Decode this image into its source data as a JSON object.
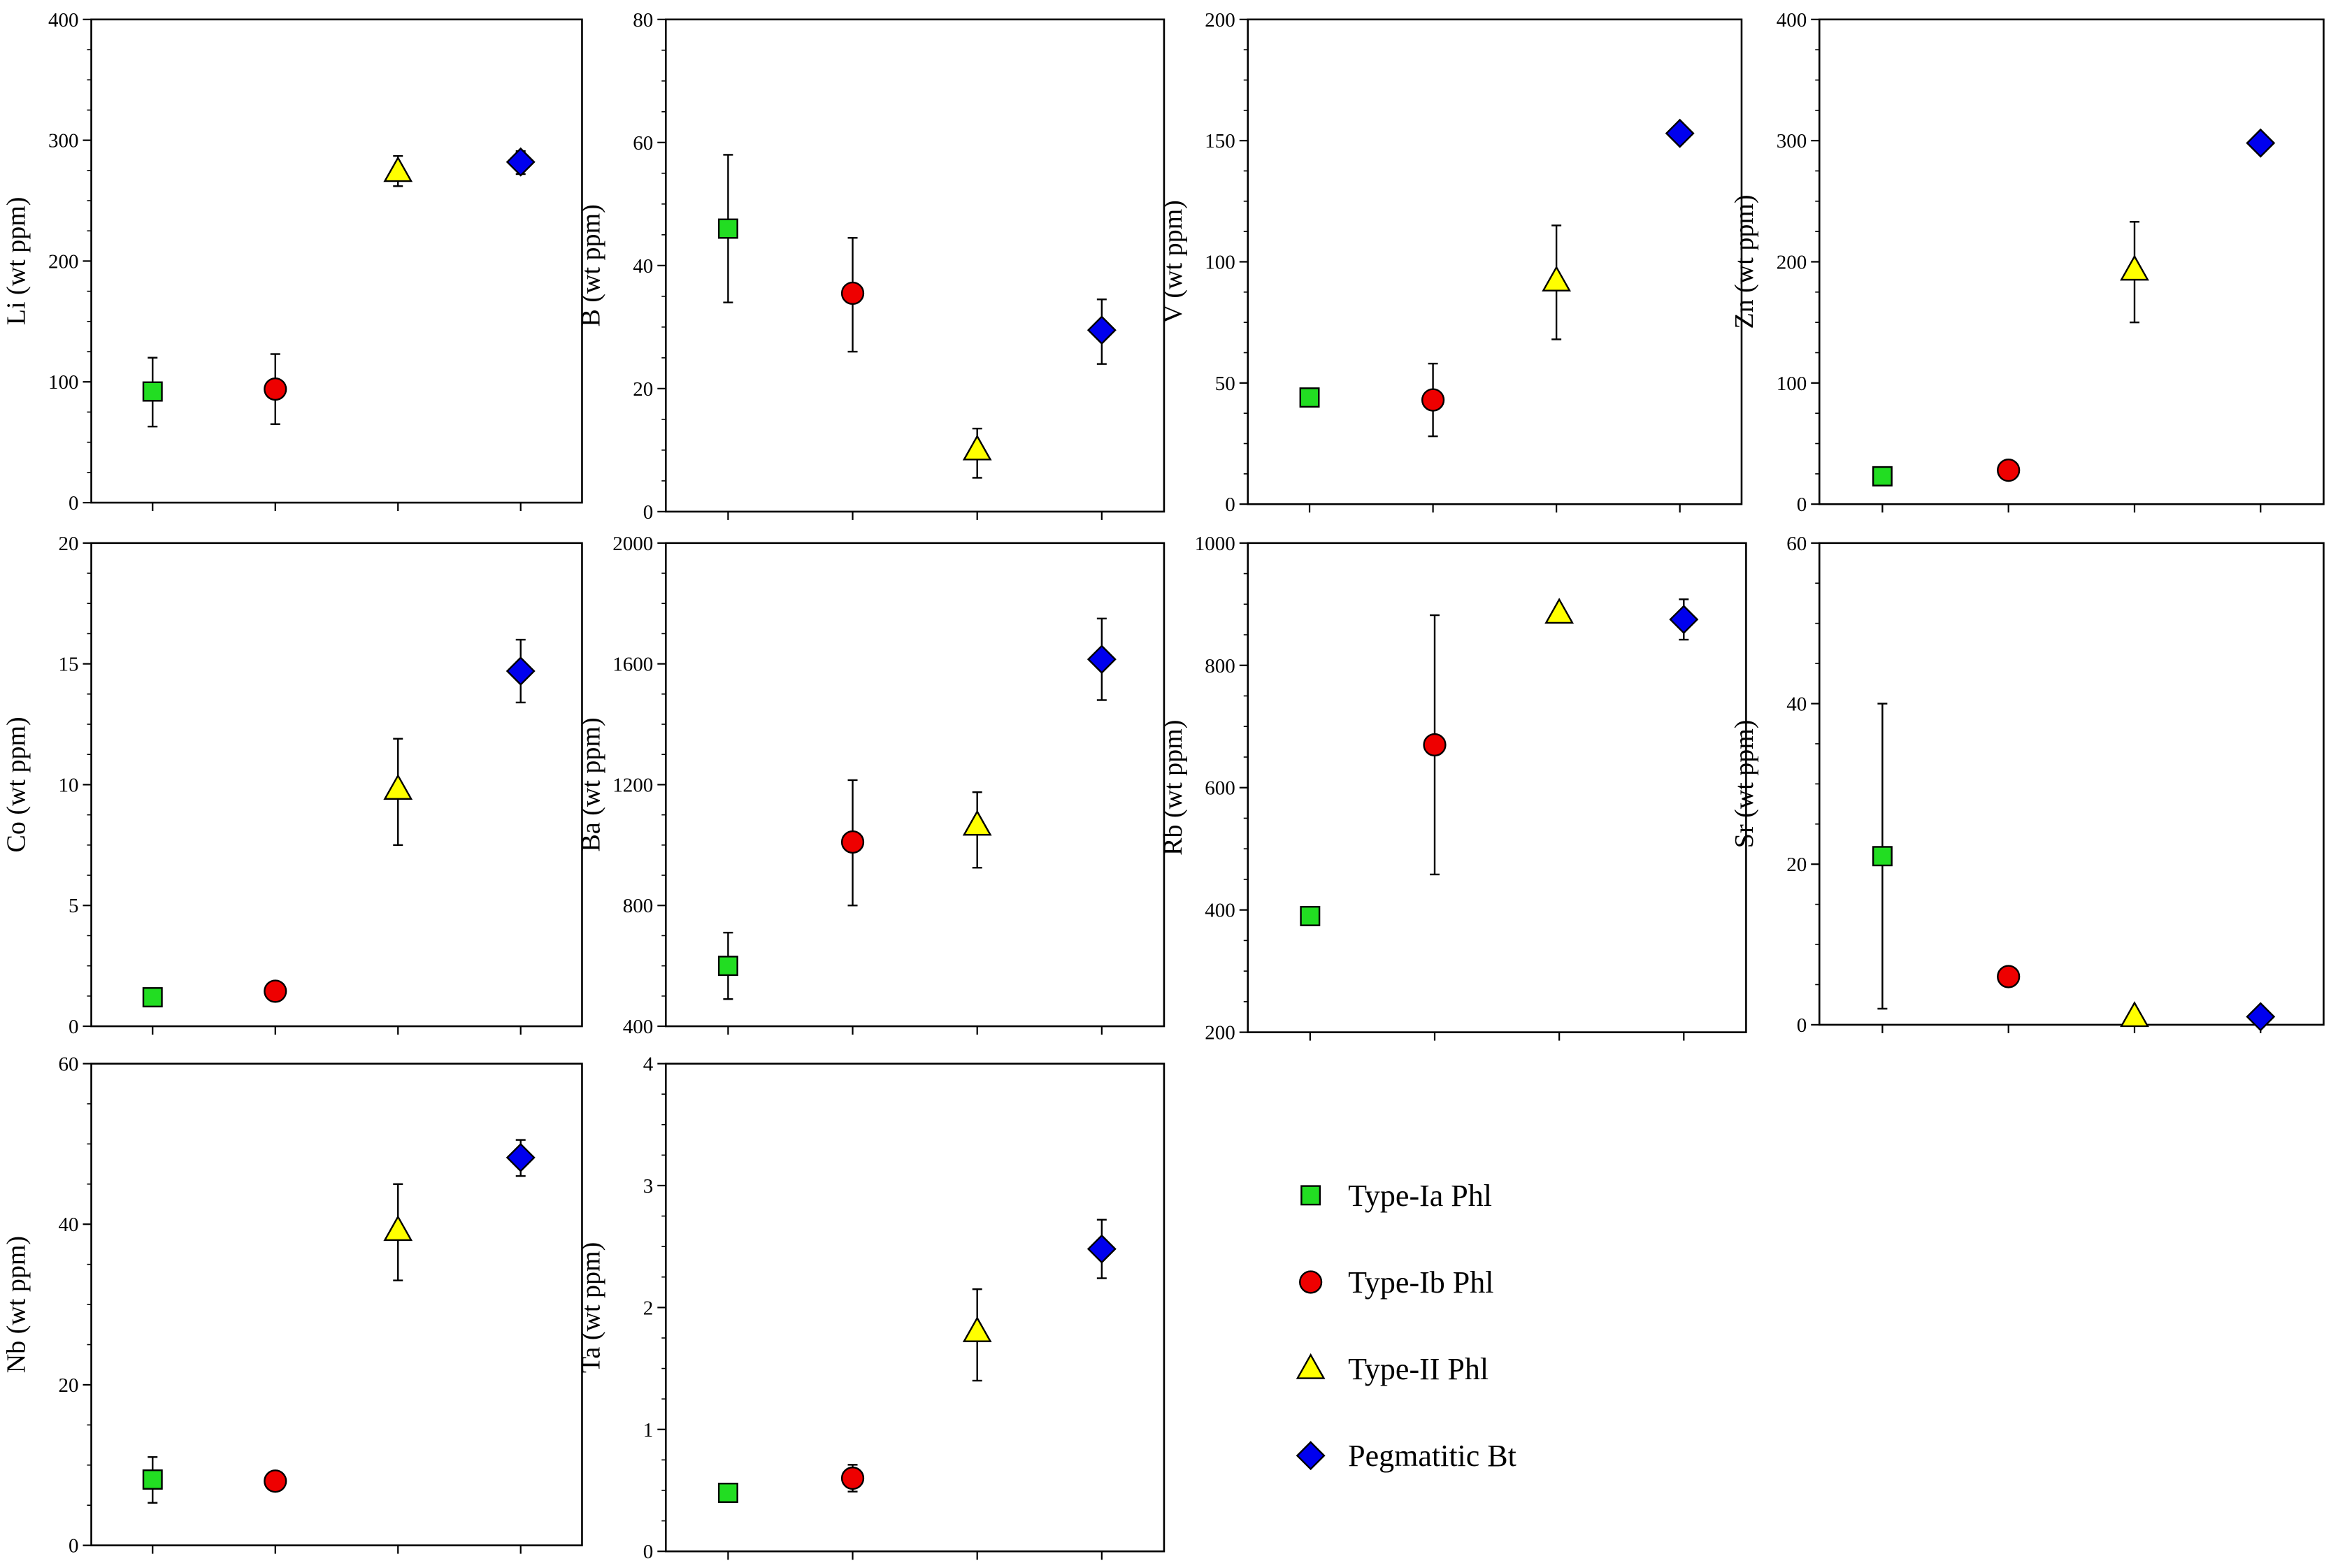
{
  "legend": {
    "items": [
      {
        "label": "Type-Ia Phl",
        "marker": "square",
        "color": "#22dd22"
      },
      {
        "label": "Type-Ib Phl",
        "marker": "circle",
        "color": "#ee0000"
      },
      {
        "label": "Type-II Phl",
        "marker": "triangle",
        "color": "#ffff00"
      },
      {
        "label": "Pegmatitic Bt",
        "marker": "diamond",
        "color": "#0000ee"
      }
    ]
  },
  "chart_data": [
    {
      "type": "scatter",
      "element": "Li",
      "ylabel": "Li  (wt ppm)",
      "ylim": [
        0,
        400
      ],
      "yticks": [
        0,
        100,
        200,
        300,
        400
      ],
      "values": [
        92,
        94,
        274,
        282
      ],
      "errors": [
        [
          63,
          120
        ],
        [
          65,
          123
        ],
        [
          262,
          287
        ],
        [
          272,
          291
        ]
      ]
    },
    {
      "type": "scatter",
      "element": "B",
      "ylabel": "B  (wt ppm)",
      "ylim": [
        0,
        80
      ],
      "yticks": [
        0,
        20,
        40,
        60,
        80
      ],
      "values": [
        46,
        35.5,
        10,
        29.5
      ],
      "errors": [
        [
          34,
          58
        ],
        [
          26,
          44.5
        ],
        [
          5.5,
          13.5
        ],
        [
          24,
          34.5
        ]
      ]
    },
    {
      "type": "scatter",
      "element": "V",
      "ylabel": "V  (wt ppm)",
      "ylim": [
        0,
        200
      ],
      "yticks": [
        0,
        50,
        100,
        150,
        200
      ],
      "values": [
        44,
        43,
        92,
        153
      ],
      "errors": [
        [
          41,
          47
        ],
        [
          28,
          58
        ],
        [
          68,
          115
        ],
        [
          151,
          155
        ]
      ]
    },
    {
      "type": "scatter",
      "element": "Zn",
      "ylabel": "Zn  (wt ppm)",
      "ylim": [
        0,
        400
      ],
      "yticks": [
        0,
        100,
        200,
        300,
        400
      ],
      "values": [
        23,
        28,
        193,
        298
      ],
      "errors": [
        [
          17,
          29
        ],
        [
          22,
          34
        ],
        [
          150,
          233
        ],
        [
          295,
          301
        ]
      ]
    },
    {
      "type": "scatter",
      "element": "Co",
      "ylabel": "Co  (wt ppm)",
      "ylim": [
        0,
        20
      ],
      "yticks": [
        0,
        5,
        10,
        15,
        20
      ],
      "values": [
        1.2,
        1.45,
        9.8,
        14.7
      ],
      "errors": [
        [
          0.9,
          1.5
        ],
        [
          1.15,
          1.75
        ],
        [
          7.5,
          11.9
        ],
        [
          13.4,
          16
        ]
      ]
    },
    {
      "type": "scatter",
      "element": "Ba",
      "ylabel": "Ba (wt ppm)",
      "ylim": [
        400,
        2000
      ],
      "yticks": [
        400,
        800,
        1200,
        1600,
        2000
      ],
      "values": [
        600,
        1010,
        1065,
        1615
      ],
      "errors": [
        [
          490,
          710
        ],
        [
          800,
          1215
        ],
        [
          925,
          1175
        ],
        [
          1480,
          1750
        ]
      ]
    },
    {
      "type": "scatter",
      "element": "Rb",
      "ylabel": "Rb  (wt ppm)",
      "ylim": [
        200,
        1000
      ],
      "yticks": [
        200,
        400,
        600,
        800,
        1000
      ],
      "values": [
        390,
        670,
        885,
        875
      ],
      "errors": [
        [
          382,
          398
        ],
        [
          458,
          882
        ],
        [
          875,
          895
        ],
        [
          842,
          908
        ]
      ]
    },
    {
      "type": "scatter",
      "element": "Sr",
      "ylabel": "Sr  (wt ppm)",
      "ylim": [
        0,
        60
      ],
      "yticks": [
        0,
        20,
        40,
        60
      ],
      "values": [
        21,
        6,
        1,
        1
      ],
      "errors": [
        [
          2,
          40
        ],
        [
          5,
          7
        ],
        [
          0.5,
          1.5
        ],
        [
          0.5,
          1.5
        ]
      ]
    },
    {
      "type": "scatter",
      "element": "Nb",
      "ylabel": "Nb  (wt ppm)",
      "ylim": [
        0,
        60
      ],
      "yticks": [
        0,
        20,
        40,
        60
      ],
      "values": [
        8.2,
        8,
        39.2,
        48.3
      ],
      "errors": [
        [
          5.3,
          11
        ],
        [
          7.2,
          8.8
        ],
        [
          33,
          45
        ],
        [
          46,
          50.5
        ]
      ]
    },
    {
      "type": "scatter",
      "element": "Ta",
      "ylabel": "Ta  (wt ppm)",
      "ylim": [
        0,
        4
      ],
      "yticks": [
        0,
        1,
        2,
        3,
        4
      ],
      "values": [
        0.48,
        0.6,
        1.8,
        2.48
      ],
      "errors": [
        [
          0.44,
          0.52
        ],
        [
          0.49,
          0.71
        ],
        [
          1.4,
          2.15
        ],
        [
          2.24,
          2.72
        ]
      ]
    }
  ]
}
